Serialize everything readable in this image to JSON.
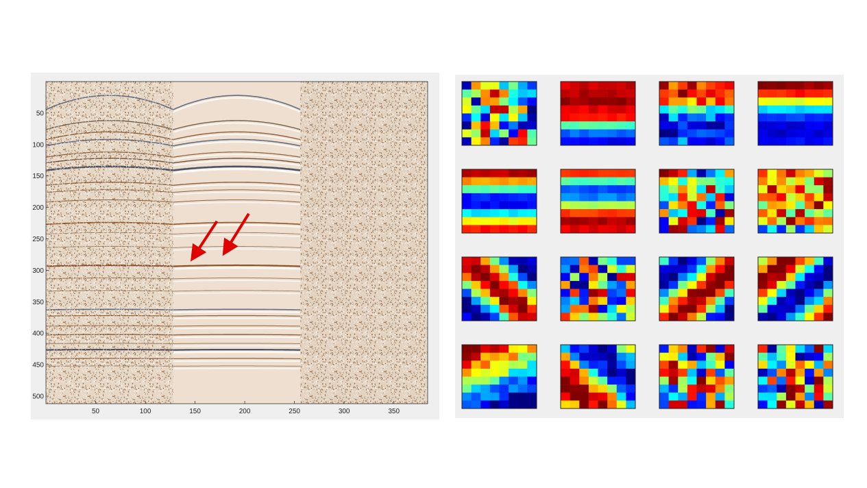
{
  "chart_data": [
    {
      "type": "heatmap",
      "title": "",
      "xlabel": "",
      "ylabel": "",
      "xlim": [
        0,
        384
      ],
      "ylim": [
        512,
        0
      ],
      "x_ticks": [
        50,
        100,
        150,
        200,
        250,
        300,
        350
      ],
      "y_ticks": [
        50,
        100,
        150,
        200,
        250,
        300,
        350,
        400,
        450,
        500
      ],
      "panels": [
        {
          "range": [
            0,
            128
          ],
          "style": "noisy"
        },
        {
          "range": [
            128,
            256
          ],
          "style": "denoised"
        },
        {
          "range": [
            256,
            384
          ],
          "style": "noise"
        }
      ],
      "annotations": [
        {
          "type": "arrow",
          "from": [
            172,
            222
          ],
          "to": [
            150,
            275
          ],
          "color": "#e00000"
        },
        {
          "type": "arrow",
          "from": [
            204,
            210
          ],
          "to": [
            182,
            266
          ],
          "color": "#e00000"
        }
      ],
      "colors": {
        "positive": "#8a4a1a",
        "negative": "#3a4a66",
        "background": "#e8d9c8"
      }
    },
    {
      "type": "heatmap",
      "title": "",
      "layout": "4x4 grid of 8x8 patches",
      "colormap": "jet",
      "patches": [
        {
          "pattern": "random",
          "seed": 1
        },
        {
          "pattern": "horizontal",
          "rows": [
            0.92,
            0.95,
            0.98,
            0.9,
            0.86,
            0.45,
            0.22,
            0.12
          ]
        },
        {
          "pattern": "horizontal-noisy",
          "rows": [
            0.85,
            0.9,
            0.78,
            0.45,
            0.2,
            0.12,
            0.1,
            0.18
          ]
        },
        {
          "pattern": "horizontal",
          "rows": [
            0.98,
            0.85,
            0.6,
            0.35,
            0.18,
            0.1,
            0.08,
            0.12
          ]
        },
        {
          "pattern": "horizontal",
          "rows": [
            0.95,
            0.72,
            0.45,
            0.15,
            0.12,
            0.35,
            0.62,
            0.86
          ]
        },
        {
          "pattern": "horizontal",
          "rows": [
            0.82,
            0.45,
            0.2,
            0.25,
            0.55,
            0.82,
            0.95,
            0.9
          ]
        },
        {
          "pattern": "random",
          "seed": 2
        },
        {
          "pattern": "random-warm",
          "seed": 3
        },
        {
          "pattern": "diagonal",
          "dir": 1,
          "phase": 0.0
        },
        {
          "pattern": "random",
          "seed": 4
        },
        {
          "pattern": "diagonal",
          "dir": -1,
          "phase": 0.3
        },
        {
          "pattern": "diagonal",
          "dir": -1,
          "phase": 0.8
        },
        {
          "pattern": "corner",
          "seed": 5
        },
        {
          "pattern": "diagonal2",
          "dir": 1,
          "phase": 0.5
        },
        {
          "pattern": "random",
          "seed": 6
        },
        {
          "pattern": "random",
          "seed": 7
        }
      ]
    }
  ]
}
